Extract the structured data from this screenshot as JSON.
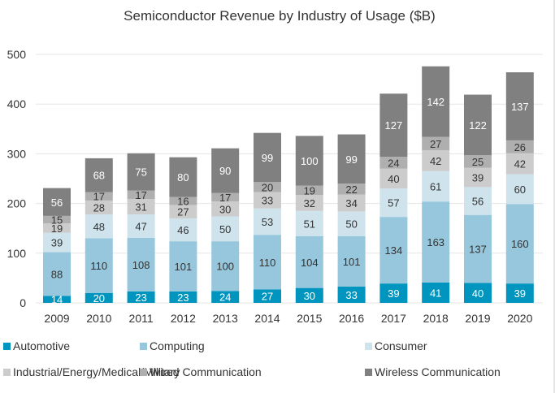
{
  "chart_data": {
    "type": "bar",
    "stacked": true,
    "title": "Semiconductor Revenue by Industry of Usage ($B)",
    "xlabel": "",
    "ylabel": "",
    "ylim": [
      0,
      500
    ],
    "yticks": [
      0,
      100,
      200,
      300,
      400,
      500
    ],
    "grid": true,
    "legend_position": "bottom",
    "categories": [
      "2009",
      "2010",
      "2011",
      "2012",
      "2013",
      "2014",
      "2015",
      "2016",
      "2017",
      "2018",
      "2019",
      "2020"
    ],
    "series": [
      {
        "name": "Automotive",
        "color": "#0095be",
        "label_color": "#ffffff",
        "values": [
          14,
          20,
          23,
          23,
          24,
          27,
          30,
          33,
          39,
          41,
          40,
          39
        ]
      },
      {
        "name": "Computing",
        "color": "#97c7dc",
        "label_color": "#333333",
        "values": [
          88,
          110,
          108,
          101,
          100,
          110,
          104,
          101,
          134,
          163,
          137,
          160
        ]
      },
      {
        "name": "Consumer",
        "color": "#cfe3ed",
        "label_color": "#333333",
        "values": [
          39,
          48,
          47,
          46,
          50,
          53,
          51,
          50,
          57,
          61,
          56,
          60
        ]
      },
      {
        "name": "Industrial/Energy/Medical/Military",
        "color": "#cccccc",
        "label_color": "#333333",
        "values": [
          19,
          28,
          31,
          27,
          30,
          33,
          32,
          34,
          40,
          42,
          39,
          42
        ]
      },
      {
        "name": "Wired Communication",
        "color": "#afafaf",
        "label_color": "#333333",
        "values": [
          15,
          17,
          17,
          16,
          17,
          20,
          19,
          22,
          24,
          27,
          25,
          26
        ]
      },
      {
        "name": "Wireless Communication",
        "color": "#808080",
        "label_color": "#ffffff",
        "values": [
          56,
          68,
          75,
          80,
          90,
          99,
          100,
          99,
          127,
          142,
          122,
          137
        ]
      }
    ],
    "gridline_color": "#e5e5e5"
  }
}
